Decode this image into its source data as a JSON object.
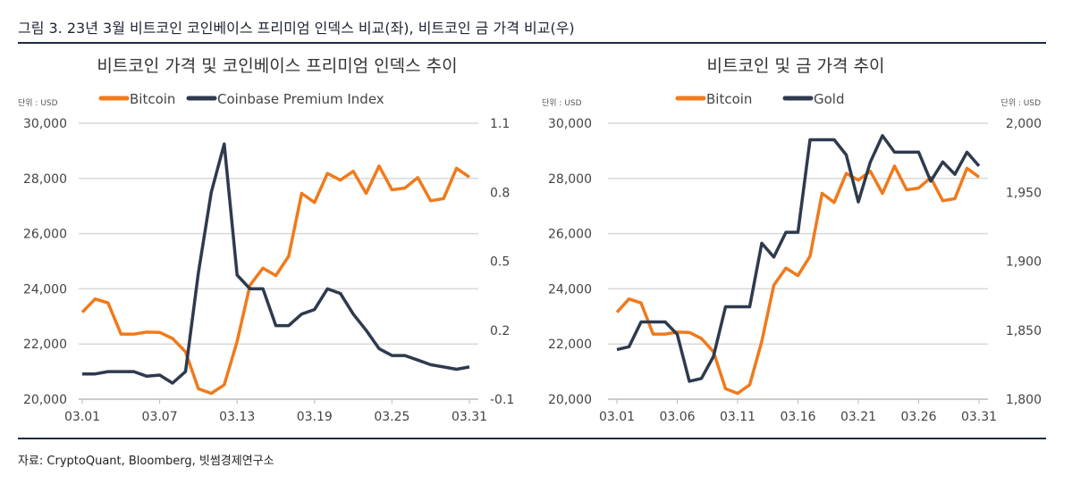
{
  "figure_title": "그림 3.  23년 3월 비트코인 코인베이스 프리미엄 인덱스 비교(좌), 비트코인 금 가격 비교(우)",
  "source": "자료: CryptoQuant, Bloomberg, 빗썸경제연구소",
  "colors": {
    "bitcoin": "#F07A1C",
    "secondary": "#2E3A4E",
    "rule": "#1F2A44",
    "grid": "#d9d9d9"
  },
  "chart_data": [
    {
      "type": "line",
      "title": "비트코인 가격 및 코인베이스 프리미엄 인덱스 추이",
      "unit_left": "단위 : USD",
      "legend_position": "top",
      "grid": true,
      "x": [
        "03.01",
        "03.02",
        "03.03",
        "03.04",
        "03.05",
        "03.06",
        "03.07",
        "03.08",
        "03.09",
        "03.10",
        "03.11",
        "03.12",
        "03.13",
        "03.14",
        "03.15",
        "03.16",
        "03.17",
        "03.18",
        "03.19",
        "03.20",
        "03.21",
        "03.22",
        "03.23",
        "03.24",
        "03.25",
        "03.26",
        "03.27",
        "03.28",
        "03.29",
        "03.30",
        "03.31"
      ],
      "x_ticks": [
        "03.01",
        "03.07",
        "03.13",
        "03.19",
        "03.25",
        "03.31"
      ],
      "y_left": {
        "lim": [
          20000,
          30000
        ],
        "ticks": [
          "20,000",
          "22,000",
          "24,000",
          "26,000",
          "28,000",
          "30,000"
        ]
      },
      "y_right": {
        "lim": [
          -0.1,
          1.1
        ],
        "ticks": [
          "-0.1",
          "0.2",
          "0.5",
          "0.8",
          "1.1"
        ]
      },
      "series": [
        {
          "name": "Bitcoin",
          "axis": "left",
          "color": "#F07A1C",
          "values": [
            23150,
            23630,
            23490,
            22360,
            22360,
            22430,
            22420,
            22200,
            21720,
            20380,
            20210,
            20520,
            22090,
            24130,
            24750,
            24480,
            25180,
            27460,
            27130,
            28180,
            27940,
            28260,
            27460,
            28450,
            27590,
            27650,
            28030,
            27190,
            27270,
            28370,
            28050
          ]
        },
        {
          "name": "Coinbase Premium Index",
          "axis": "right",
          "color": "#2E3A4E",
          "values": [
            0.01,
            0.01,
            0.02,
            0.02,
            0.02,
            0.0,
            0.005,
            -0.03,
            0.02,
            0.45,
            0.8,
            1.01,
            0.44,
            0.38,
            0.38,
            0.22,
            0.22,
            0.27,
            0.29,
            0.38,
            0.36,
            0.27,
            0.2,
            0.12,
            0.09,
            0.09,
            0.07,
            0.05,
            0.04,
            0.03,
            0.04
          ]
        }
      ]
    },
    {
      "type": "line",
      "title": "비트코인 및 금 가격 추이",
      "unit_left": "단위 : USD",
      "unit_right": "단위 : USD",
      "legend_position": "top",
      "grid": true,
      "x": [
        "03.01",
        "03.02",
        "03.03",
        "03.04",
        "03.05",
        "03.06",
        "03.07",
        "03.08",
        "03.09",
        "03.10",
        "03.11",
        "03.12",
        "03.13",
        "03.14",
        "03.15",
        "03.16",
        "03.17",
        "03.18",
        "03.19",
        "03.20",
        "03.21",
        "03.22",
        "03.23",
        "03.24",
        "03.25",
        "03.26",
        "03.27",
        "03.28",
        "03.29",
        "03.30",
        "03.31"
      ],
      "x_ticks": [
        "03.01",
        "03.06",
        "03.11",
        "03.16",
        "03.21",
        "03.26",
        "03.31"
      ],
      "y_left": {
        "lim": [
          20000,
          30000
        ],
        "ticks": [
          "20,000",
          "22,000",
          "24,000",
          "26,000",
          "28,000",
          "30,000"
        ]
      },
      "y_right": {
        "lim": [
          1800,
          2000
        ],
        "ticks": [
          "1,800",
          "1,850",
          "1,900",
          "1,950",
          "2,000"
        ]
      },
      "series": [
        {
          "name": "Bitcoin",
          "axis": "left",
          "color": "#F07A1C",
          "values": [
            23150,
            23630,
            23490,
            22360,
            22360,
            22430,
            22420,
            22200,
            21720,
            20380,
            20210,
            20520,
            22090,
            24130,
            24750,
            24480,
            25180,
            27460,
            27130,
            28180,
            27940,
            28260,
            27460,
            28450,
            27590,
            27650,
            28030,
            27190,
            27270,
            28370,
            28050
          ]
        },
        {
          "name": "Gold",
          "axis": "right",
          "color": "#2E3A4E",
          "values": [
            1836,
            1838,
            1856,
            1856,
            1856,
            1847,
            1813,
            1815,
            1831,
            1867,
            1867,
            1867,
            1913,
            1903,
            1921,
            1921,
            1988,
            1988,
            1988,
            1977,
            1943,
            1972,
            1991,
            1979,
            1979,
            1979,
            1958,
            1972,
            1963,
            1979,
            1969
          ]
        }
      ]
    }
  ]
}
